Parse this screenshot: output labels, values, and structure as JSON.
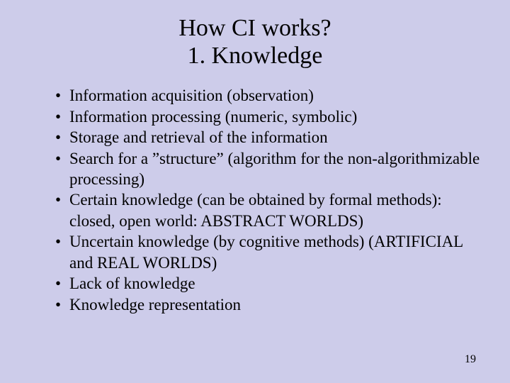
{
  "slide": {
    "background_color": "#cdccea",
    "text_color": "#000000",
    "font_family": "Times New Roman",
    "title": {
      "line1": "How CI works?",
      "line2": "1. Knowledge",
      "fontsize": 34
    },
    "bullets": [
      "Information acquisition (observation)",
      "Information processing (numeric, symbolic)",
      "Storage and retrieval of the information",
      "Search for a ”structure” (algorithm for the non-algorithmizable processing)",
      "Certain knowledge (can be obtained by formal methods): closed, open world: ABSTRACT WORLDS)",
      "Uncertain knowledge (by cognitive methods) (ARTIFICIAL and REAL WORLDS)",
      "Lack of knowledge",
      "Knowledge representation"
    ],
    "bullet_fontsize": 23,
    "page_number": "19",
    "page_number_fontsize": 16
  }
}
